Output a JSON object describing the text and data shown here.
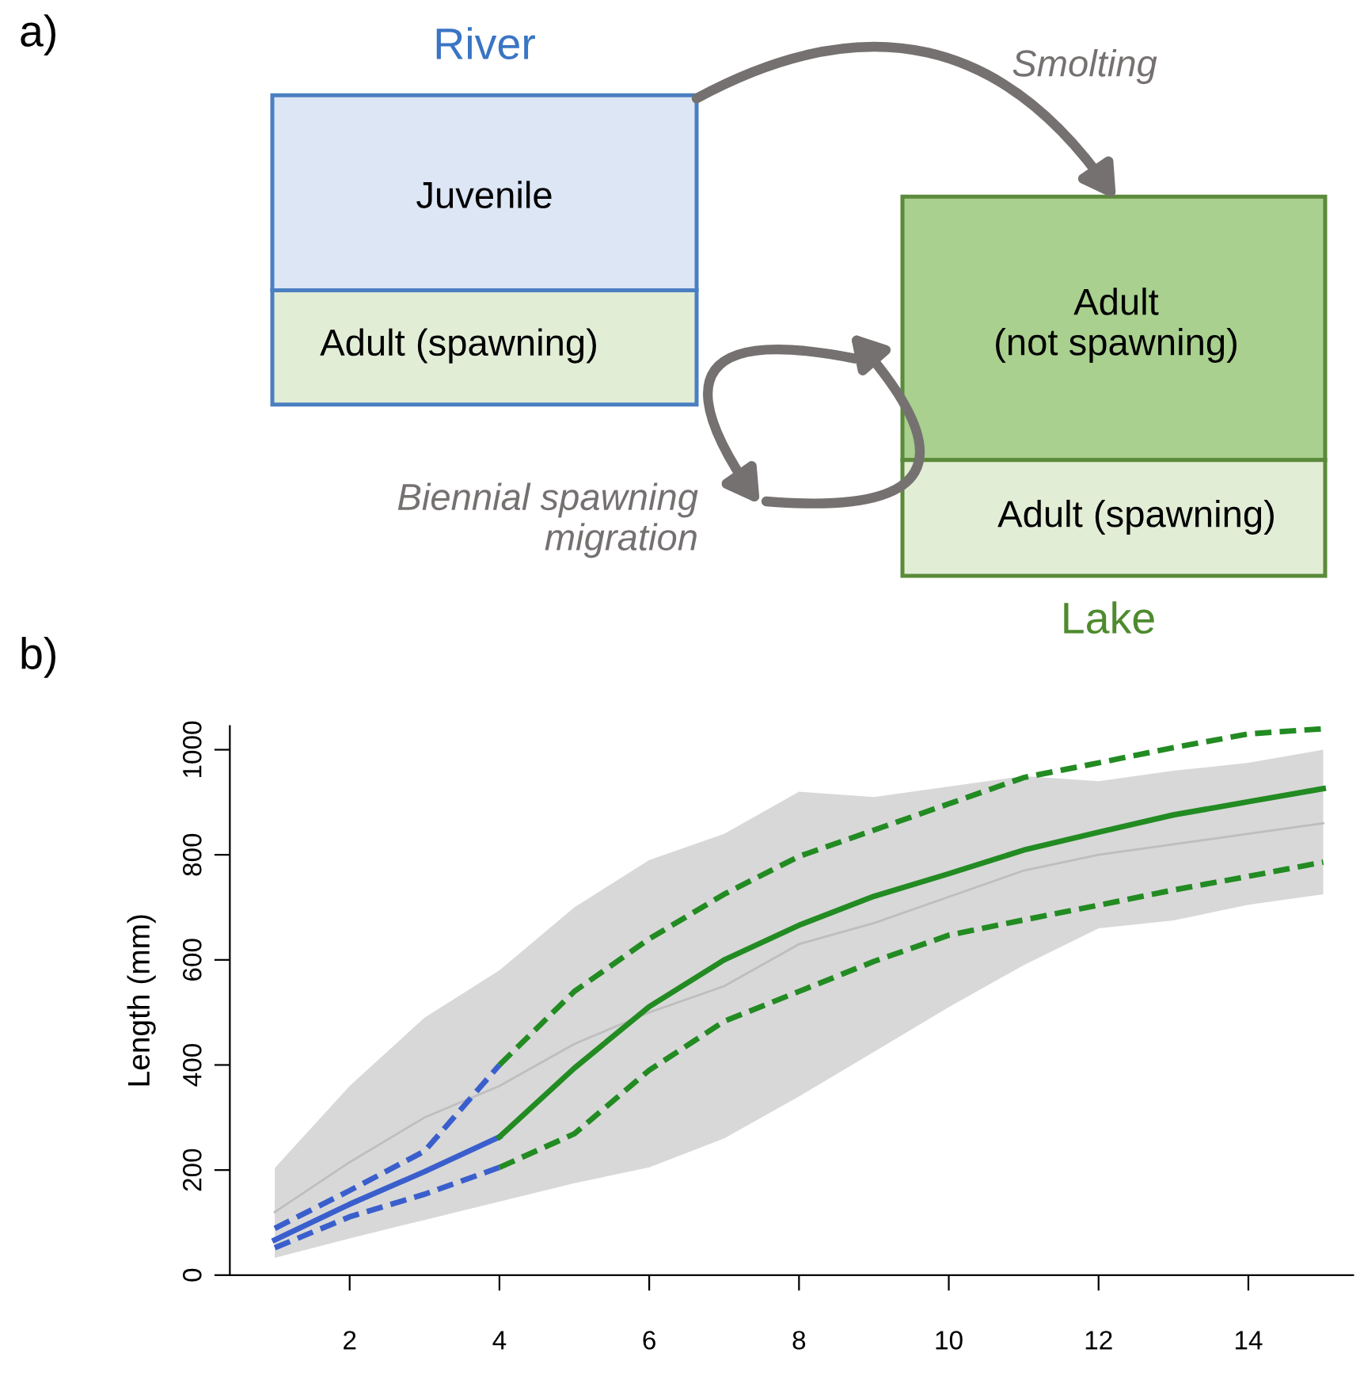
{
  "chart_data": [
    {
      "type": "other",
      "title": "a)",
      "annotations": [
        "River",
        "Juvenile",
        "Adult (spawning)",
        "Adult\n(not spawning)",
        "Adult (spawning)",
        "Lake",
        "Smolting",
        "Biennial spawning\nmigration"
      ]
    },
    {
      "type": "line",
      "title": "b)",
      "ylabel": "Length (mm)",
      "xlim": [
        0.4,
        15.4
      ],
      "ylim": [
        0,
        1045
      ],
      "xticks": [
        2,
        4,
        6,
        8,
        10,
        12,
        14
      ],
      "yticks": [
        0,
        200,
        400,
        600,
        800,
        1000
      ],
      "grid": false,
      "legend": false,
      "series": [
        {
          "type": "line",
          "color": "#bebebe",
          "x": [
            1,
            2,
            3,
            4,
            5,
            6,
            7,
            8,
            9,
            10,
            11,
            12,
            13,
            14,
            15
          ],
          "values": [
            120,
            215,
            300,
            360,
            440,
            500,
            550,
            630,
            670,
            720,
            770,
            800,
            820,
            840,
            860
          ],
          "lower": [
            33,
            70,
            105,
            140,
            175,
            205,
            260,
            340,
            425,
            510,
            590,
            660,
            675,
            705,
            725
          ],
          "upper": [
            204,
            360,
            490,
            580,
            700,
            790,
            840,
            920,
            910,
            930,
            950,
            940,
            960,
            975,
            1000
          ]
        },
        {
          "color": "#3a5fcd",
          "line_style": "dashed",
          "x": [
            1,
            2,
            3,
            4
          ],
          "values": [
            89,
            161,
            236,
            400
          ]
        },
        {
          "color": "#3a5fcd",
          "line_style": "dashed",
          "x": [
            1,
            2,
            3,
            4
          ],
          "values": [
            52,
            111,
            154,
            205
          ]
        },
        {
          "color": "#3a5fcd",
          "line_style": "solid",
          "x": [
            1,
            2,
            3,
            4
          ],
          "values": [
            67,
            135,
            197,
            263
          ]
        },
        {
          "color": "#228b22",
          "line_style": "dashed",
          "x": [
            4,
            5,
            6,
            7,
            8,
            9,
            10,
            11,
            12,
            13,
            14,
            15
          ],
          "values": [
            400,
            540,
            640,
            725,
            797,
            847,
            897,
            947,
            975,
            1004,
            1030,
            1040
          ]
        },
        {
          "color": "#228b22",
          "line_style": "dashed",
          "x": [
            4,
            5,
            6,
            7,
            8,
            9,
            10,
            11,
            12,
            13,
            14,
            15
          ],
          "values": [
            205,
            269,
            390,
            483,
            540,
            597,
            647,
            676,
            704,
            733,
            759,
            786
          ]
        },
        {
          "color": "#228b22",
          "line_style": "solid",
          "x": [
            4,
            5,
            6,
            7,
            8,
            9,
            10,
            11,
            12,
            13,
            14,
            15
          ],
          "values": [
            263,
            394,
            511,
            600,
            666,
            721,
            764,
            809,
            843,
            876,
            901,
            926
          ]
        }
      ]
    }
  ]
}
